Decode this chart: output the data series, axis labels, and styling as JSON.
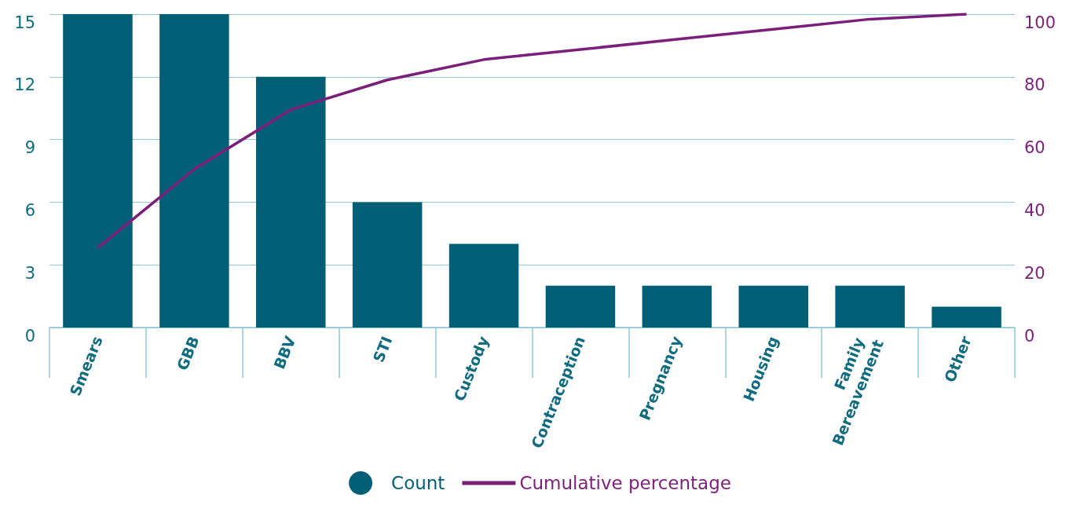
{
  "chart_data": {
    "type": "bar",
    "categories": [
      "Smears",
      "GBB",
      "BBV",
      "STI",
      "Custody",
      "Contraception",
      "Pregnancy",
      "Housing",
      "Family Bereavement",
      "Other"
    ],
    "series": [
      {
        "name": "Count",
        "color": "#005f75",
        "values": [
          15,
          15,
          12,
          6,
          4,
          2,
          2,
          2,
          2,
          1
        ]
      },
      {
        "name": "Cumulative percentage",
        "type": "line",
        "axis": "y2",
        "color": "#7b1f7b",
        "values": [
          25.4,
          50.5,
          69.5,
          79,
          85.5,
          88.7,
          92,
          95.2,
          98.4,
          100
        ]
      }
    ],
    "ylim": [
      0,
      15
    ],
    "yticks": [
      0,
      3,
      6,
      9,
      12,
      15
    ],
    "y2lim": [
      0,
      100
    ],
    "y2ticks": [
      0,
      20,
      40,
      60,
      80,
      100
    ],
    "grid": "y",
    "legend": "bottom",
    "marker": "none",
    "line_style": "solid"
  }
}
